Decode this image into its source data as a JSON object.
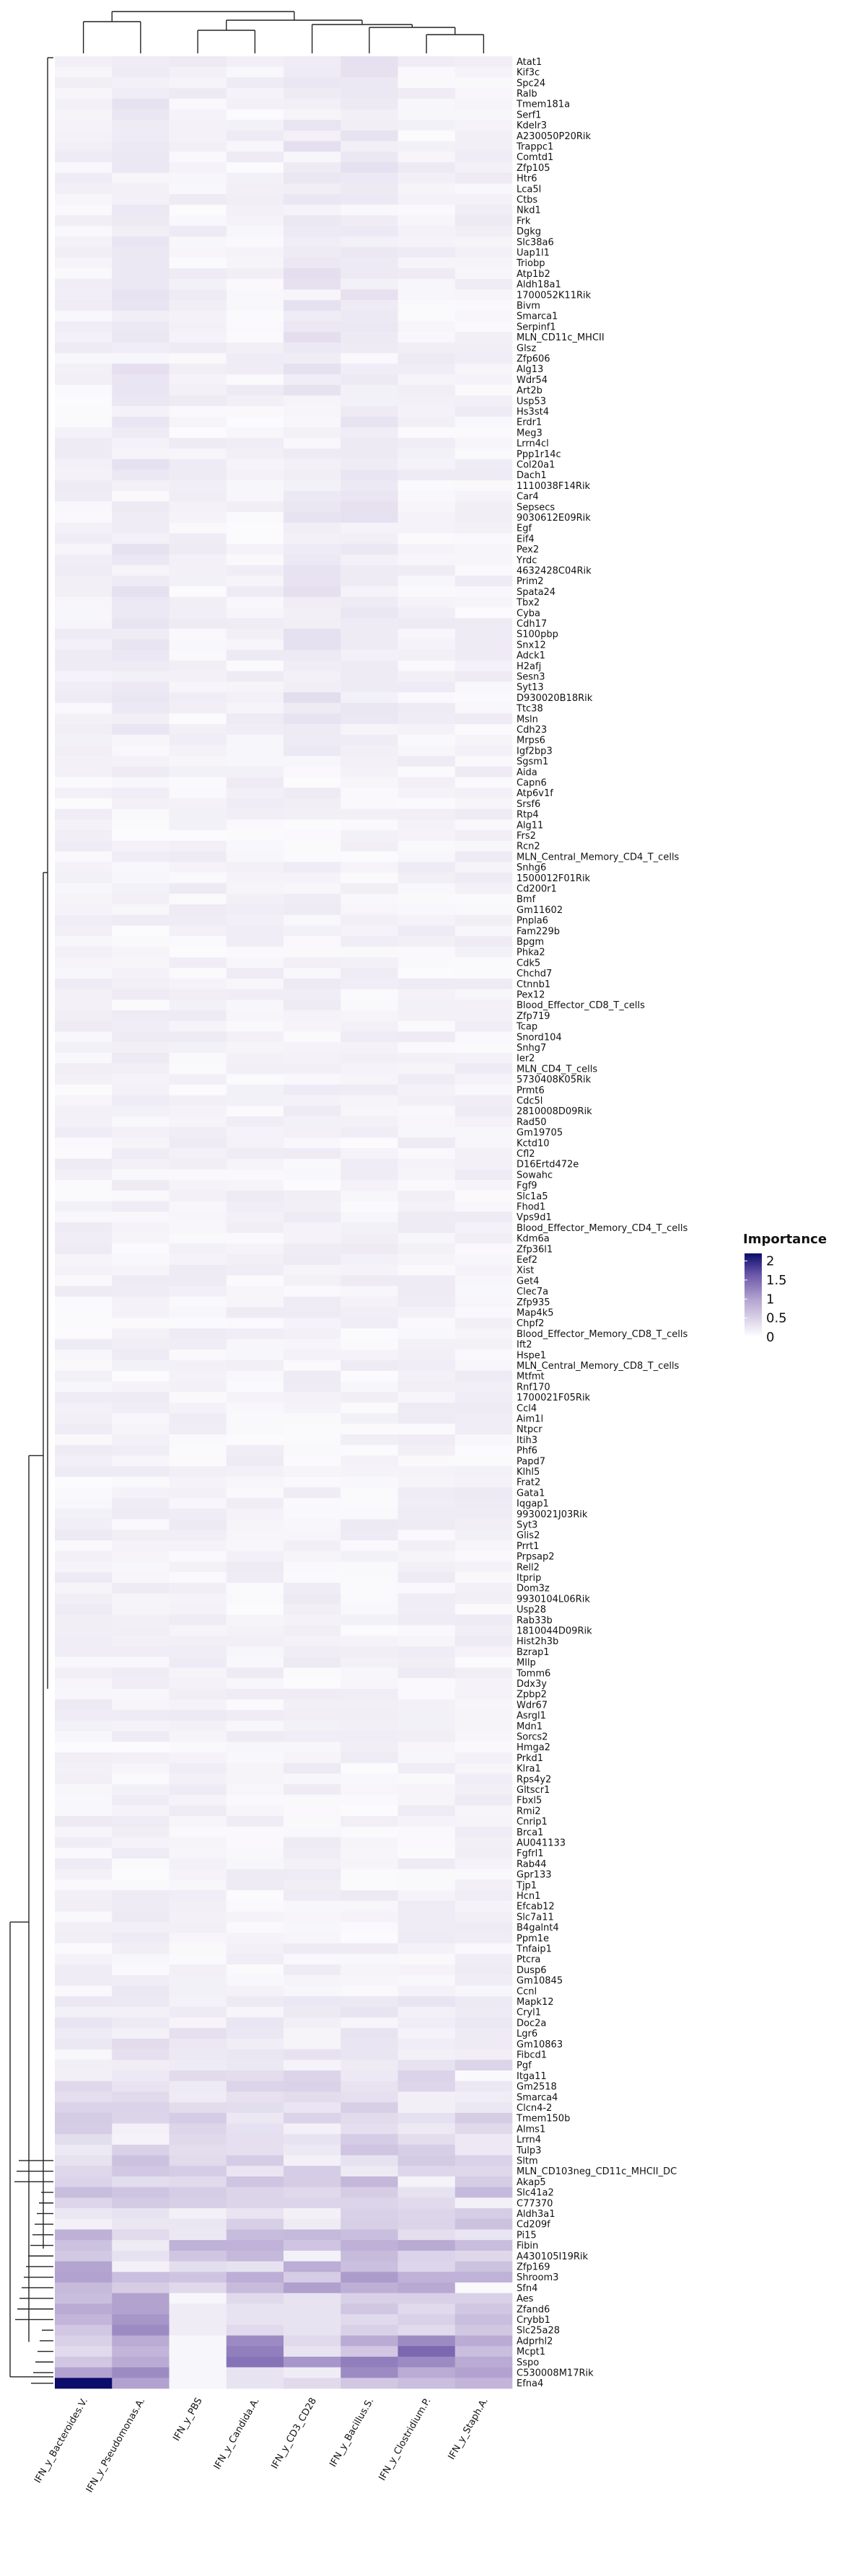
{
  "chart_data": {
    "type": "heatmap",
    "columns": [
      "IFN_y_Bacteroides.V.",
      "IFN_y_Pseudomonas.A.",
      "IFN_y_PBS",
      "IFN_y_Candida.A.",
      "IFN_y_CD3_CD28",
      "IFN_y_Bacillus.S.",
      "IFN_y_Clostridium.P.",
      "IFN_y_Staph.A."
    ],
    "rows": [
      "Atat1",
      "Kif3c",
      "Spc24",
      "Ralb",
      "Tmem181a",
      "Serf1",
      "Kdelr3",
      "A230050P20Rik",
      "Trappc1",
      "Comtd1",
      "Zfp105",
      "Htr6",
      "Lca5l",
      "Ctbs",
      "Nkd1",
      "Frk",
      "Dgkg",
      "Slc38a6",
      "Uap1l1",
      "Triobp",
      "Atp1b2",
      "Aldh18a1",
      "1700052K11Rik",
      "Bivm",
      "Smarca1",
      "Serpinf1",
      "MLN_CD11c_MHCII",
      "Glsz",
      "Zfp606",
      "Alg13",
      "Wdr54",
      "Art2b",
      "Usp53",
      "Hs3st4",
      "Erdr1",
      "Meg3",
      "Lrrn4cl",
      "Ppp1r14c",
      "Col20a1",
      "Dach1",
      "1110038F14Rik",
      "Car4",
      "Sepsecs",
      "9030612E09Rik",
      "Egf",
      "Eif4",
      "Pex2",
      "Yrdc",
      "4632428C04Rik",
      "Prim2",
      "Spata24",
      "Tbx2",
      "Cyba",
      "Cdh17",
      "S100pbp",
      "Snx12",
      "Adck1",
      "H2afj",
      "Sesn3",
      "Syt13",
      "D930020B18Rik",
      "Ttc38",
      "Msln",
      "Cdh23",
      "Mrps6",
      "Igf2bp3",
      "Sgsm1",
      "Aida",
      "Capn6",
      "Atp6v1f",
      "Srsf6",
      "Rtp4",
      "Alg11",
      "Frs2",
      "Rcn2",
      "MLN_Central_Memory_CD4_T_cells",
      "Snhg6",
      "1500012F01Rik",
      "Cd200r1",
      "Bmf",
      "Gm11602",
      "Pnpla6",
      "Fam229b",
      "Bpgm",
      "Phka2",
      "Cdk5",
      "Chchd7",
      "Ctnnb1",
      "Pex12",
      "Blood_Effector_CD8_T_cells",
      "Zfp719",
      "Tcap",
      "Snord104",
      "Snhg7",
      "Ier2",
      "MLN_CD4_T_cells",
      "5730408K05Rik",
      "Prmt6",
      "Cdc5l",
      "2810008D09Rik",
      "Rad50",
      "Gm19705",
      "Kctd10",
      "Cfl2",
      "D16Ertd472e",
      "Sowahc",
      "Fgf9",
      "Slc1a5",
      "Fhod1",
      "Vps9d1",
      "Blood_Effector_Memory_CD4_T_cells",
      "Kdm6a",
      "Zfp36l1",
      "Eef2",
      "Xist",
      "Get4",
      "Clec7a",
      "Zfp935",
      "Map4k5",
      "Chpf2",
      "Blood_Effector_Memory_CD8_T_cells",
      "Ift2",
      "Hspe1",
      "MLN_Central_Memory_CD8_T_cells",
      "Mtfmt",
      "Rnf170",
      "1700021F05Rik",
      "Ccl4",
      "Aim1l",
      "Ntpcr",
      "Itih3",
      "Phf6",
      "Papd7",
      "Klhl5",
      "Frat2",
      "Gata1",
      "Iqgap1",
      "9930021J03Rik",
      "Syt3",
      "Glis2",
      "Prrt1",
      "Prpsap2",
      "Rell2",
      "Itprip",
      "Dom3z",
      "9930104L06Rik",
      "Usp28",
      "Rab33b",
      "1810044D09Rik",
      "Hist2h3b",
      "Bzrap1",
      "Mllp",
      "Tomm6",
      "Ddx3y",
      "Zpbp2",
      "Wdr67",
      "Asrgl1",
      "Mdn1",
      "Sorcs2",
      "Hmga2",
      "Prkd1",
      "Klra1",
      "Rps4y2",
      "Gltscr1",
      "Fbxl5",
      "Rmi2",
      "Cnrip1",
      "Brca1",
      "AU041133",
      "Fgfrl1",
      "Rab44",
      "Gpr133",
      "Tjp1",
      "Hcn1",
      "Efcab12",
      "Slc7a11",
      "B4galnt4",
      "Ppm1e",
      "Tnfaip1",
      "Ptcra",
      "Dusp6",
      "Gm10845",
      "Ccnl",
      "Mapk12",
      "Cryl1",
      "Doc2a",
      "Lgr6",
      "Gm10863",
      "Fibcd1",
      "Pgf",
      "Itga11",
      "Gm2518",
      "Smarca4",
      "Clcn4-2",
      "Tmem150b",
      "Alms1",
      "Lrrn4",
      "Tulp3",
      "Sltm",
      "MLN_CD103neg_CD11c_MHCII_DC",
      "Akap5",
      "Slc41a2",
      "C77370",
      "Aldh3a1",
      "Cd209f",
      "Pi15",
      "Fibin",
      "A430105I19Rik",
      "Zfp169",
      "Shroom3",
      "Sfn4",
      "Aes",
      "Zfand6",
      "Crybb1",
      "Slc25a28",
      "Adprhl2",
      "Mcpt1",
      "Sspo",
      "C530008M17Rik",
      "Efna4"
    ],
    "values": [],
    "colorbar": {
      "title": "Importance",
      "ticks": [
        "2",
        "1.5",
        "1",
        "0.5",
        "0"
      ],
      "range": [
        0,
        2.2
      ],
      "color_low": "#ffffff",
      "color_high": "#0c0c6b"
    },
    "dendrogram": "column and row hierarchical clustering",
    "xlabel": "",
    "ylabel": "",
    "title": ""
  }
}
